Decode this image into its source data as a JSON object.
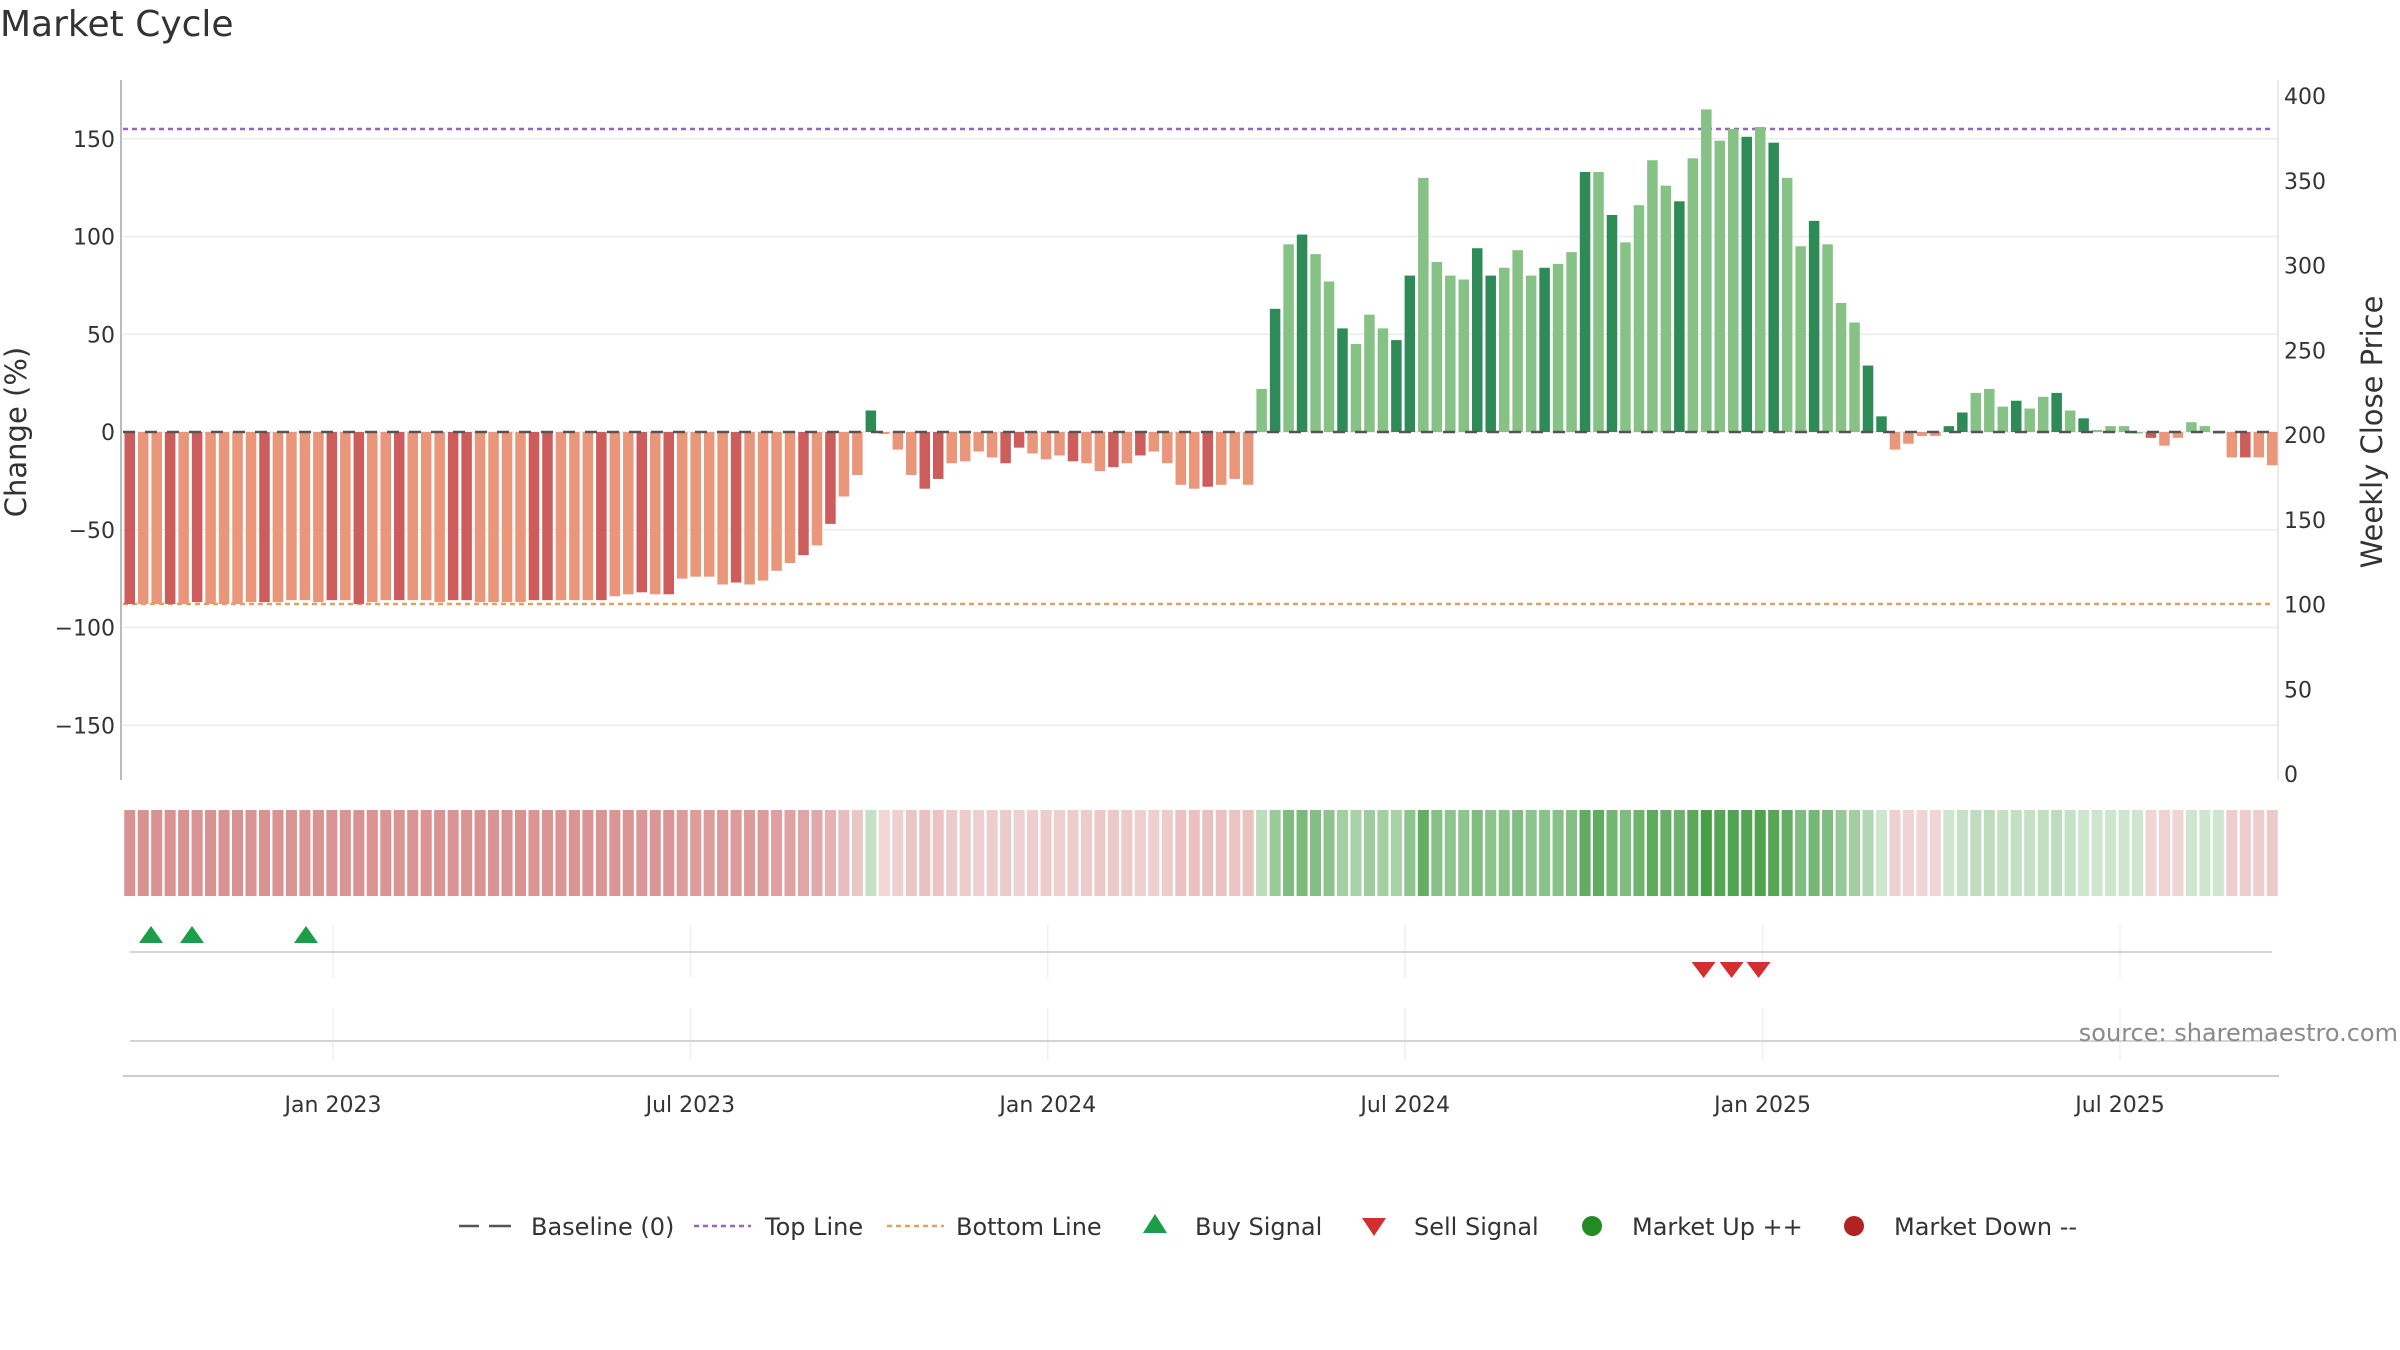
{
  "title": "Market Cycle",
  "source": "source: sharemaestro.com",
  "colors": {
    "up_strong": "#2e8b57",
    "up_light": "#86c285",
    "down_strong": "#cd5c5c",
    "down_light": "#e9967a",
    "top_line": "#9467bd",
    "bottom_line": "#e0a060",
    "buy": "#1a9e4a",
    "sell": "#d32f2f",
    "market_up": "#228b22",
    "market_down": "#b22222"
  },
  "chart_data": {
    "type": "bar",
    "x_labels": [
      "Jan 2023",
      "Jul 2023",
      "Jan 2024",
      "Jul 2024",
      "Jan 2025",
      "Jul 2025"
    ],
    "y_left": {
      "label": "Change (%)",
      "ticks": [
        150,
        100,
        50,
        0,
        -50,
        -100,
        -150
      ],
      "range": [
        -175,
        180
      ]
    },
    "y_right": {
      "label": "Weekly Close Price",
      "ticks": [
        400,
        350,
        300,
        250,
        200,
        150,
        100,
        50,
        0
      ]
    },
    "top_line": 155,
    "bottom_line": -88,
    "values": [
      -88,
      -88,
      -88,
      -88,
      -88,
      -87,
      -88,
      -88,
      -88,
      -87,
      -87,
      -87,
      -86,
      -86,
      -87,
      -86,
      -86,
      -88,
      -87,
      -86,
      -86,
      -86,
      -86,
      -87,
      -86,
      -86,
      -87,
      -87,
      -87,
      -87,
      -86,
      -86,
      -86,
      -86,
      -86,
      -86,
      -84,
      -83,
      -82,
      -83,
      -83,
      -75,
      -74,
      -74,
      -78,
      -77,
      -78,
      -76,
      -71,
      -67,
      -63,
      -58,
      -47,
      -33,
      -22,
      11,
      -1,
      -9,
      -22,
      -29,
      -24,
      -16,
      -15,
      -10,
      -13,
      -16,
      -8,
      -11,
      -14,
      -12,
      -15,
      -16,
      -20,
      -18,
      -16,
      -12,
      -10,
      -16,
      -27,
      -29,
      -28,
      -27,
      -24,
      -27,
      22,
      63,
      96,
      101,
      91,
      77,
      53,
      45,
      60,
      53,
      47,
      80,
      130,
      87,
      80,
      78,
      94,
      80,
      84,
      93,
      80,
      84,
      86,
      92,
      133,
      133,
      111,
      97,
      116,
      139,
      126,
      118,
      140,
      165,
      149,
      155,
      151,
      156,
      148,
      130,
      95,
      108,
      96,
      66,
      56,
      34,
      8,
      -9,
      -6,
      -2,
      -2,
      3,
      10,
      20,
      22,
      13,
      16,
      12,
      18,
      20,
      11,
      7,
      1,
      3,
      3,
      0,
      -3,
      -7,
      -3,
      5,
      3,
      0,
      -13,
      -13,
      -13,
      -17
    ],
    "buy_signals": [
      "Nov 2022",
      "Nov 2022",
      "Dec 2022"
    ],
    "sell_signals": [
      "Dec 2024",
      "Dec 2024",
      "Jan 2025"
    ],
    "legend": [
      "Baseline (0)",
      "Top Line",
      "Bottom Line",
      "Buy Signal",
      "Sell Signal",
      "Market Up ++",
      "Market Down --"
    ],
    "grid": true,
    "legend_position": "bottom"
  }
}
